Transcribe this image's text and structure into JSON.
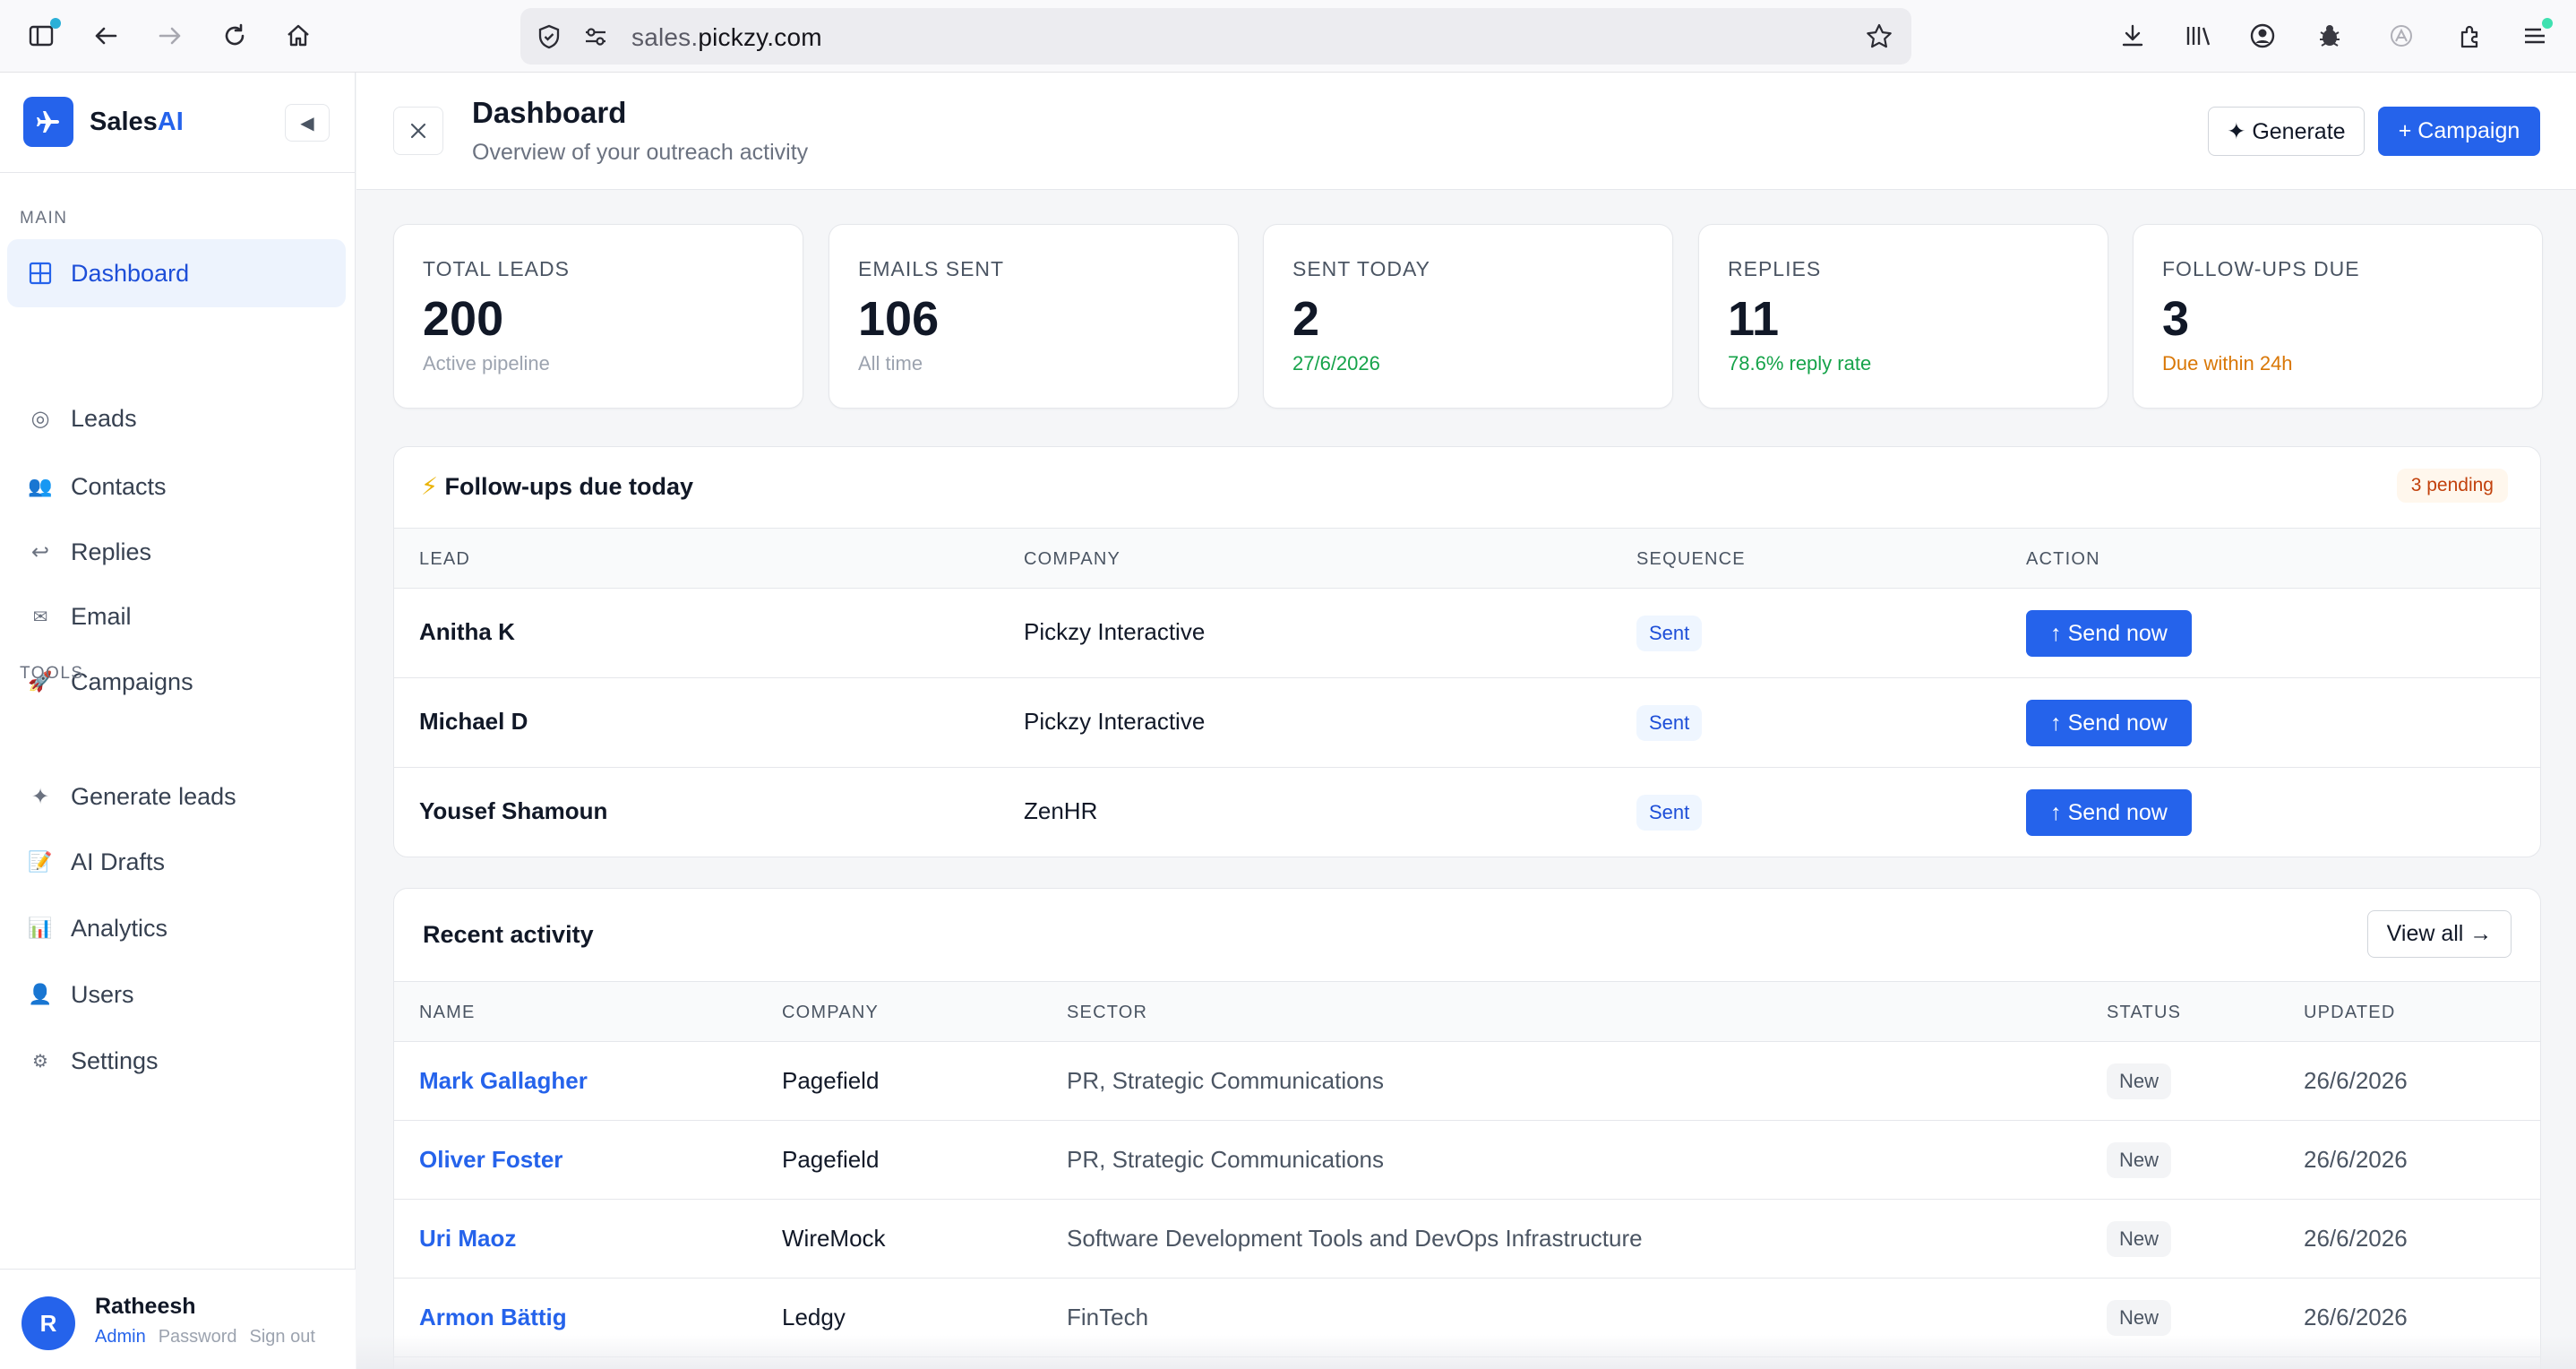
{
  "browser": {
    "url_prefix": "sales.",
    "url_domain": "pickzy.com"
  },
  "sidebar": {
    "brand_main": "Sales",
    "brand_accent": "AI",
    "collapse_glyph": "◀",
    "main_label": "MAIN",
    "tools_label": "TOOLS",
    "items": [
      {
        "label": "Dashboard",
        "icon": "grid-icon",
        "glyph": "⊞"
      },
      {
        "label": "Leads",
        "icon": "target-icon",
        "glyph": "◎"
      },
      {
        "label": "Contacts",
        "icon": "people-icon",
        "glyph": "👥"
      },
      {
        "label": "Replies",
        "icon": "reply-icon",
        "glyph": "↩"
      },
      {
        "label": "Email",
        "icon": "envelope-icon",
        "glyph": "✉"
      },
      {
        "label": "Campaigns",
        "icon": "rocket-icon",
        "glyph": "🚀"
      },
      {
        "label": "Generate leads",
        "icon": "sparkle-icon",
        "glyph": "✦"
      },
      {
        "label": "AI Drafts",
        "icon": "memo-icon",
        "glyph": "📝"
      },
      {
        "label": "Analytics",
        "icon": "bar-chart-icon",
        "glyph": "📊"
      },
      {
        "label": "Users",
        "icon": "user-icon",
        "glyph": "👤"
      },
      {
        "label": "Settings",
        "icon": "gear-icon",
        "glyph": "⚙"
      }
    ],
    "user": {
      "initial": "R",
      "name": "Ratheesh",
      "role": "Admin",
      "password_link": "Password",
      "signout_link": "Sign out"
    }
  },
  "header": {
    "title": "Dashboard",
    "subtitle": "Overview of your outreach activity",
    "generate_label": "✦ Generate",
    "campaign_label": "+ Campaign"
  },
  "stats": [
    {
      "label": "TOTAL LEADS",
      "value": "200",
      "sub": "Active pipeline",
      "tone": "muted"
    },
    {
      "label": "EMAILS SENT",
      "value": "106",
      "sub": "All time",
      "tone": "muted"
    },
    {
      "label": "SENT TODAY",
      "value": "2",
      "sub": "27/6/2026",
      "tone": "green"
    },
    {
      "label": "REPLIES",
      "value": "11",
      "sub": "78.6% reply rate",
      "tone": "green"
    },
    {
      "label": "FOLLOW-UPS DUE",
      "value": "3",
      "sub": "Due within 24h",
      "tone": "orange"
    }
  ],
  "followups": {
    "icon": "⚡",
    "title": "Follow-ups due today",
    "badge": "3 pending",
    "columns": [
      "LEAD",
      "COMPANY",
      "SEQUENCE",
      "ACTION"
    ],
    "rows": [
      {
        "lead": "Anitha K",
        "company": "Pickzy Interactive",
        "sequence": "Sent",
        "action": "↑ Send now"
      },
      {
        "lead": "Michael D",
        "company": "Pickzy Interactive",
        "sequence": "Sent",
        "action": "↑ Send now"
      },
      {
        "lead": "Yousef Shamoun",
        "company": "ZenHR",
        "sequence": "Sent",
        "action": "↑ Send now"
      }
    ]
  },
  "activity": {
    "title": "Recent activity",
    "view_all": "View all →",
    "columns": [
      "NAME",
      "COMPANY",
      "SECTOR",
      "STATUS",
      "UPDATED"
    ],
    "rows": [
      {
        "name": "Mark Gallagher",
        "company": "Pagefield",
        "sector": "PR, Strategic Communications",
        "status": "New",
        "updated": "26/6/2026"
      },
      {
        "name": "Oliver Foster",
        "company": "Pagefield",
        "sector": "PR, Strategic Communications",
        "status": "New",
        "updated": "26/6/2026"
      },
      {
        "name": "Uri Maoz",
        "company": "WireMock",
        "sector": "Software Development Tools and DevOps Infrastructure",
        "status": "New",
        "updated": "26/6/2026"
      },
      {
        "name": "Armon Bättig",
        "company": "Ledgy",
        "sector": "FinTech",
        "status": "New",
        "updated": "26/6/2026"
      }
    ]
  },
  "colors": {
    "accent": "#2563eb",
    "success": "#16a34a",
    "warning": "#d97706"
  }
}
